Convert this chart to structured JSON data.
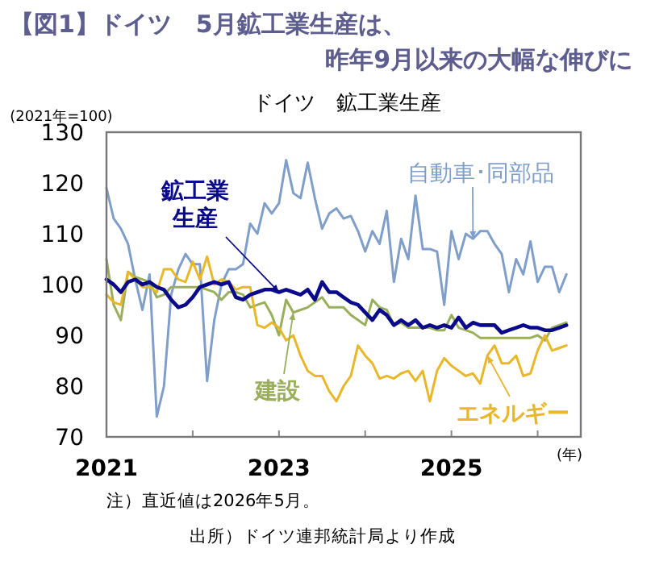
{
  "chart_data": {
    "type": "line",
    "title": "【図1】ドイツ　5月鉱工業生産は、昨年9月以来の大幅な伸びに",
    "subtitle": "ドイツ　鉱工業生産",
    "ylabel": "(2021年=100)",
    "xlabel": "(年)",
    "annotations": [
      "注）直近値は2026年5月。",
      "出所）ドイツ連邦統計局より作成"
    ],
    "x": [
      "2021-01",
      "2021-02",
      "2021-03",
      "2021-04",
      "2021-05",
      "2021-06",
      "2021-07",
      "2021-08",
      "2021-09",
      "2021-10",
      "2021-11",
      "2021-12",
      "2022-01",
      "2022-02",
      "2022-03",
      "2022-04",
      "2022-05",
      "2022-06",
      "2022-07",
      "2022-08",
      "2022-09",
      "2022-10",
      "2022-11",
      "2022-12",
      "2023-01",
      "2023-02",
      "2023-03",
      "2023-04",
      "2023-05",
      "2023-06",
      "2023-07",
      "2023-08",
      "2023-09",
      "2023-10",
      "2023-11",
      "2023-12",
      "2024-01",
      "2024-02",
      "2024-03",
      "2024-04",
      "2024-05",
      "2024-06",
      "2024-07",
      "2024-08",
      "2024-09",
      "2024-10",
      "2024-11",
      "2024-12",
      "2025-01",
      "2025-02",
      "2025-03",
      "2025-04",
      "2025-05",
      "2025-06",
      "2025-07",
      "2025-08",
      "2025-09",
      "2025-10",
      "2025-11",
      "2025-12",
      "2026-01",
      "2026-02",
      "2026-03",
      "2026-04",
      "2026-05"
    ],
    "series": [
      {
        "name": "自動車･同部品",
        "color": "#7f9fca",
        "values": [
          119,
          113,
          111,
          108,
          101,
          95,
          102,
          74,
          80,
          98,
          103,
          106,
          104,
          104,
          81,
          93,
          100,
          103,
          103,
          104,
          112,
          110,
          116,
          114,
          116,
          124.5,
          118,
          117,
          124,
          117,
          111,
          114,
          115,
          113,
          113.5,
          110.5,
          106.5,
          110.5,
          108,
          114.5,
          100.5,
          109,
          105,
          117.5,
          107,
          107,
          106.5,
          96,
          110.5,
          105,
          110,
          109,
          110.5,
          110.5,
          108,
          106,
          98.5,
          105,
          102,
          108.5,
          100.5,
          103.5,
          103.5,
          98.5,
          102
        ]
      },
      {
        "name": "建設",
        "color": "#9aaf5c",
        "values": [
          105,
          96,
          93,
          102.5,
          101.5,
          101,
          100.5,
          97.5,
          98,
          99.5,
          99.5,
          99.5,
          99.5,
          99.5,
          99,
          98.5,
          97,
          98.5,
          98.5,
          98,
          95.5,
          96,
          96.5,
          94,
          90,
          97,
          94.5,
          95,
          95.5,
          96.5,
          97.5,
          95.5,
          95.5,
          95.5,
          94,
          93,
          92,
          97,
          95.5,
          95,
          92,
          92.5,
          91.5,
          91.5,
          91.5,
          91.5,
          91,
          91,
          94,
          91.5,
          91,
          90.5,
          89.5,
          89.5,
          89.5,
          89.5,
          89.5,
          89.5,
          89.5,
          89.5,
          90,
          89,
          91.5,
          92,
          92.5
        ]
      },
      {
        "name": "エネルギー",
        "color": "#e9b72a",
        "values": [
          98,
          96.5,
          96,
          102.5,
          101,
          99.5,
          99.5,
          98.5,
          103,
          103,
          101,
          100.5,
          104.5,
          101,
          105.5,
          100,
          101,
          100.5,
          99,
          99.5,
          99.5,
          92,
          91.5,
          92.5,
          91.5,
          89,
          90,
          86,
          83,
          82,
          82,
          79,
          77,
          80,
          82,
          88,
          86,
          84.5,
          81.5,
          82,
          81.5,
          82.5,
          83,
          81,
          83,
          77,
          83,
          85.5,
          84,
          83,
          82,
          82.5,
          80.5,
          86,
          88,
          84.5,
          84.5,
          86,
          82,
          82.5,
          87,
          90,
          87,
          87.5,
          88
        ]
      },
      {
        "name": "鉱工業生産",
        "color": "#0a0a8a",
        "values": [
          101,
          100,
          98.5,
          100.5,
          101,
          100,
          100.5,
          99.5,
          99,
          97,
          95.5,
          96,
          97.5,
          99.5,
          100,
          100.5,
          100,
          100.5,
          97.5,
          97,
          98,
          98.5,
          99,
          99,
          98.5,
          99,
          98.5,
          98,
          99,
          97,
          100.5,
          98.5,
          98.5,
          97.5,
          96.5,
          96,
          94.5,
          93,
          95,
          94,
          92,
          93,
          92,
          93,
          91.5,
          92,
          91.5,
          92,
          91.5,
          93.5,
          91.5,
          92.5,
          92,
          92,
          92,
          90.5,
          91,
          91.5,
          92,
          91.5,
          91.5,
          91,
          91,
          91.5,
          92
        ]
      }
    ],
    "xlim": [
      "2021-01",
      "2026-07"
    ],
    "xticks": [
      {
        "value": "2021-01",
        "label": "2021"
      },
      {
        "value": "2022-01",
        "label": null
      },
      {
        "value": "2023-01",
        "label": "2023"
      },
      {
        "value": "2024-01",
        "label": null
      },
      {
        "value": "2025-01",
        "label": "2025"
      },
      {
        "value": "2026-01",
        "label": null
      }
    ],
    "ylim": [
      70,
      130
    ],
    "yticks": [
      70,
      80,
      90,
      100,
      110,
      120,
      130
    ],
    "grid": false,
    "marker": "none",
    "line_style": "solid"
  }
}
